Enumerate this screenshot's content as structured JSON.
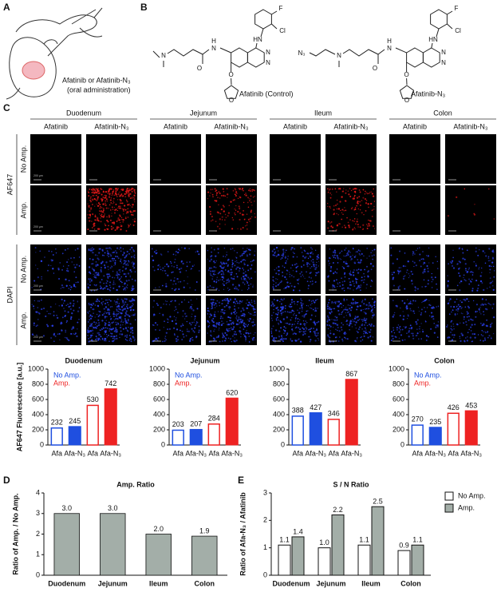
{
  "panel_labels": [
    "A",
    "B",
    "C",
    "D",
    "E"
  ],
  "panel_a": {
    "caption": [
      "Afatinib or Afatinib-N₃",
      "(oral administration)"
    ]
  },
  "panel_b": {
    "molecules": [
      {
        "name": "Afatinib (Control)",
        "atoms": [
          "F",
          "Cl",
          "HN",
          "N",
          "N",
          "H",
          "N",
          "O",
          "N",
          "O",
          "O"
        ]
      },
      {
        "name": "Afatinib-N₃",
        "atoms": [
          "F",
          "Cl",
          "HN",
          "N",
          "N",
          "H",
          "N",
          "O",
          "N",
          "N₃",
          "O",
          "O"
        ]
      }
    ]
  },
  "panel_c": {
    "tissues": [
      "Duodenum",
      "Jejunum",
      "Ileum",
      "Colon"
    ],
    "treatments": [
      "Afatinib",
      "Afatinib-N₃"
    ],
    "stains": [
      "AF647",
      "DAPI"
    ],
    "conditions": [
      "No Amp.",
      "Amp."
    ],
    "scale_label": "200 µm"
  },
  "chart_data": [
    {
      "type": "bar",
      "title": "Duodenum",
      "ylabel": "AF647 Fluorescence [a.u.]",
      "categories": [
        "Afa",
        "Afa-N₃",
        "Afa",
        "Afa-N₃"
      ],
      "values": [
        232,
        245,
        530,
        742
      ],
      "colors": [
        "#1f4fe0",
        "#1f4fe0",
        "#ee2222",
        "#ee2222"
      ],
      "filled": [
        false,
        true,
        false,
        true
      ],
      "legend": [
        {
          "name": "No Amp.",
          "color": "#1f4fe0"
        },
        {
          "name": "Amp.",
          "color": "#ee2222"
        }
      ],
      "ylim": [
        0,
        1000
      ],
      "yticks": [
        0,
        200,
        400,
        600,
        800,
        1000
      ]
    },
    {
      "type": "bar",
      "title": "Jejunum",
      "categories": [
        "Afa",
        "Afa-N₃",
        "Afa",
        "Afa-N₃"
      ],
      "values": [
        203,
        207,
        284,
        620
      ],
      "colors": [
        "#1f4fe0",
        "#1f4fe0",
        "#ee2222",
        "#ee2222"
      ],
      "filled": [
        false,
        true,
        false,
        true
      ],
      "legend": [
        {
          "name": "No Amp.",
          "color": "#1f4fe0"
        },
        {
          "name": "Amp.",
          "color": "#ee2222"
        }
      ],
      "ylim": [
        0,
        1000
      ],
      "yticks": [
        0,
        200,
        400,
        600,
        800,
        1000
      ]
    },
    {
      "type": "bar",
      "title": "Ileum",
      "categories": [
        "Afa",
        "Afa-N₃",
        "Afa",
        "Afa-N₃"
      ],
      "values": [
        388,
        427,
        346,
        867
      ],
      "colors": [
        "#1f4fe0",
        "#1f4fe0",
        "#ee2222",
        "#ee2222"
      ],
      "filled": [
        false,
        true,
        false,
        true
      ],
      "ylim": [
        0,
        1000
      ],
      "yticks": [
        0,
        200,
        400,
        600,
        800,
        1000
      ]
    },
    {
      "type": "bar",
      "title": "Colon",
      "categories": [
        "Afa",
        "Afa-N₃",
        "Afa",
        "Afa-N₃"
      ],
      "values": [
        270,
        235,
        426,
        453
      ],
      "colors": [
        "#1f4fe0",
        "#1f4fe0",
        "#ee2222",
        "#ee2222"
      ],
      "filled": [
        false,
        true,
        false,
        true
      ],
      "legend": [
        {
          "name": "No Amp.",
          "color": "#1f4fe0"
        },
        {
          "name": "Amp.",
          "color": "#ee2222"
        }
      ],
      "ylim": [
        0,
        1000
      ],
      "yticks": [
        0,
        200,
        400,
        600,
        800,
        1000
      ]
    },
    {
      "type": "bar",
      "title": "Amp. Ratio",
      "ylabel": "Ratio of Amp. / No Amp.",
      "categories": [
        "Duodenum",
        "Jejunum",
        "Ileum",
        "Colon"
      ],
      "values": [
        3.0,
        3.0,
        2.0,
        1.9
      ],
      "value_labels": [
        "3.0",
        "3.0",
        "2.0",
        "1.9"
      ],
      "color": "#a3aea8",
      "ylim": [
        0,
        4
      ],
      "yticks": [
        0,
        1,
        2,
        3,
        4
      ]
    },
    {
      "type": "grouped_bar",
      "title": "S / N Ratio",
      "ylabel": "Ratio of Afa-N₃ / Afatinib",
      "categories": [
        "Duodenum",
        "Jejunum",
        "Ileum",
        "Colon"
      ],
      "series": [
        {
          "name": "No Amp.",
          "color": "#ffffff",
          "values": [
            1.1,
            1.0,
            1.1,
            0.9
          ],
          "value_labels": [
            "1.1",
            "1.0",
            "1.1",
            "0.9"
          ]
        },
        {
          "name": "Amp.",
          "color": "#a3aea8",
          "values": [
            1.4,
            2.2,
            2.5,
            1.1
          ],
          "value_labels": [
            "1.4",
            "2.2",
            "2.5",
            "1.1"
          ]
        }
      ],
      "ylim": [
        0,
        3
      ],
      "yticks": [
        0,
        1,
        2,
        3
      ],
      "legend_position": "upper right"
    }
  ]
}
